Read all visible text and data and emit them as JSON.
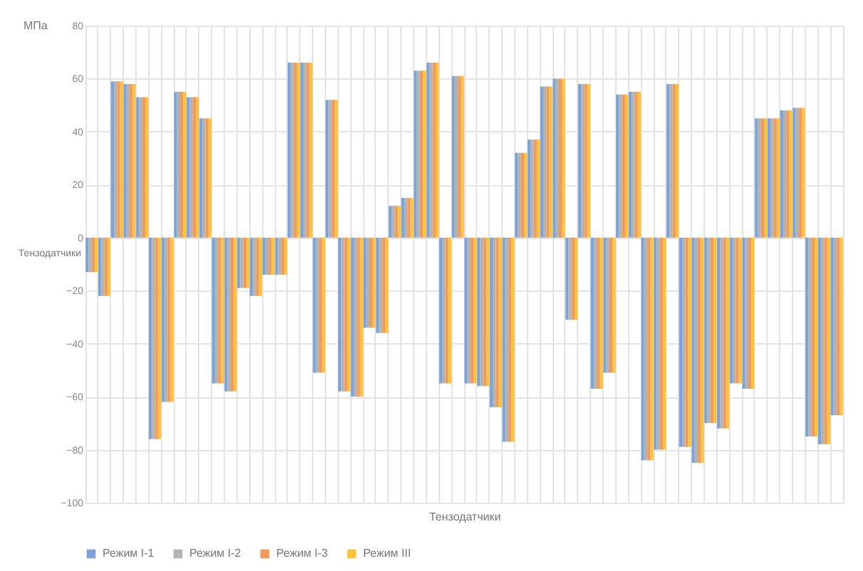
{
  "chart_data": {
    "type": "bar",
    "ylabel": "МПа",
    "xlabel": "Тензодатчики",
    "annotations": [
      "Тензодатчики"
    ],
    "categories": [
      null,
      null,
      null,
      null,
      null,
      null,
      null,
      null,
      null,
      null,
      null,
      null,
      null,
      null,
      null,
      null,
      null,
      null,
      null,
      null,
      null,
      null,
      null,
      null,
      null,
      null,
      null,
      null,
      null,
      null,
      null,
      null,
      null,
      null,
      null,
      null,
      null,
      null,
      null,
      null,
      null,
      null,
      null,
      null,
      null,
      null,
      null,
      null,
      null,
      null,
      null,
      null,
      null,
      null,
      null,
      null,
      null,
      null,
      null,
      null
    ],
    "series": [
      {
        "name": "Режим I-1",
        "color": "#7ea3d6",
        "values": [
          -13,
          -22,
          59,
          58,
          53,
          -76,
          -62,
          55,
          53,
          45,
          -55,
          -58,
          -19,
          -22,
          -14,
          -14,
          66,
          66,
          -51,
          52,
          -58,
          -60,
          -34,
          -36,
          12,
          15,
          63,
          66,
          -55,
          61,
          -55,
          -56,
          -64,
          -77,
          32,
          37,
          57,
          60,
          -31,
          58,
          -57,
          -51,
          54,
          55,
          -84,
          -80,
          58,
          -79,
          -85,
          -70,
          -72,
          -55,
          -57,
          45,
          45,
          48,
          49,
          -75,
          -78,
          -67
        ]
      },
      {
        "name": "Режим I-2",
        "color": "#b3b3b3",
        "values": [
          -13,
          -22,
          59,
          58,
          53,
          -76,
          -62,
          55,
          53,
          45,
          -55,
          -58,
          -19,
          -22,
          -14,
          -14,
          66,
          66,
          -51,
          52,
          -58,
          -60,
          -34,
          -36,
          12,
          15,
          63,
          66,
          -55,
          61,
          -55,
          -56,
          -64,
          -77,
          32,
          37,
          57,
          60,
          -31,
          58,
          -57,
          -51,
          54,
          55,
          -84,
          -80,
          58,
          -79,
          -85,
          -70,
          -72,
          -55,
          -57,
          45,
          45,
          48,
          49,
          -75,
          -78,
          -67
        ]
      },
      {
        "name": "Режим I-3",
        "color": "#f09a5c",
        "values": [
          -13,
          -22,
          59,
          58,
          53,
          -76,
          -62,
          55,
          53,
          45,
          -55,
          -58,
          -19,
          -22,
          -14,
          -14,
          66,
          66,
          -51,
          52,
          -58,
          -60,
          -34,
          -36,
          12,
          15,
          63,
          66,
          -55,
          61,
          -55,
          -56,
          -64,
          -77,
          32,
          37,
          57,
          60,
          -31,
          58,
          -57,
          -51,
          54,
          55,
          -84,
          -80,
          58,
          -79,
          -85,
          -70,
          -72,
          -55,
          -57,
          45,
          45,
          48,
          49,
          -75,
          -78,
          -67
        ]
      },
      {
        "name": "Режим III",
        "color": "#fcc23e",
        "values": [
          -13,
          -22,
          59,
          58,
          53,
          -76,
          -62,
          55,
          53,
          45,
          -55,
          -58,
          -19,
          -22,
          -14,
          -14,
          66,
          66,
          -51,
          52,
          -58,
          -60,
          -34,
          -36,
          12,
          15,
          63,
          66,
          -55,
          61,
          -55,
          -56,
          -64,
          -77,
          32,
          37,
          57,
          60,
          -31,
          58,
          -57,
          -51,
          54,
          55,
          -84,
          -80,
          58,
          -79,
          -85,
          -70,
          -72,
          -55,
          -57,
          45,
          45,
          48,
          49,
          -75,
          -78,
          -67
        ]
      }
    ],
    "ylim": [
      -100,
      80
    ],
    "yticks": [
      -100,
      -80,
      -60,
      -40,
      -20,
      0,
      20,
      40,
      60,
      80
    ],
    "grid": true,
    "legend": "bottom"
  }
}
